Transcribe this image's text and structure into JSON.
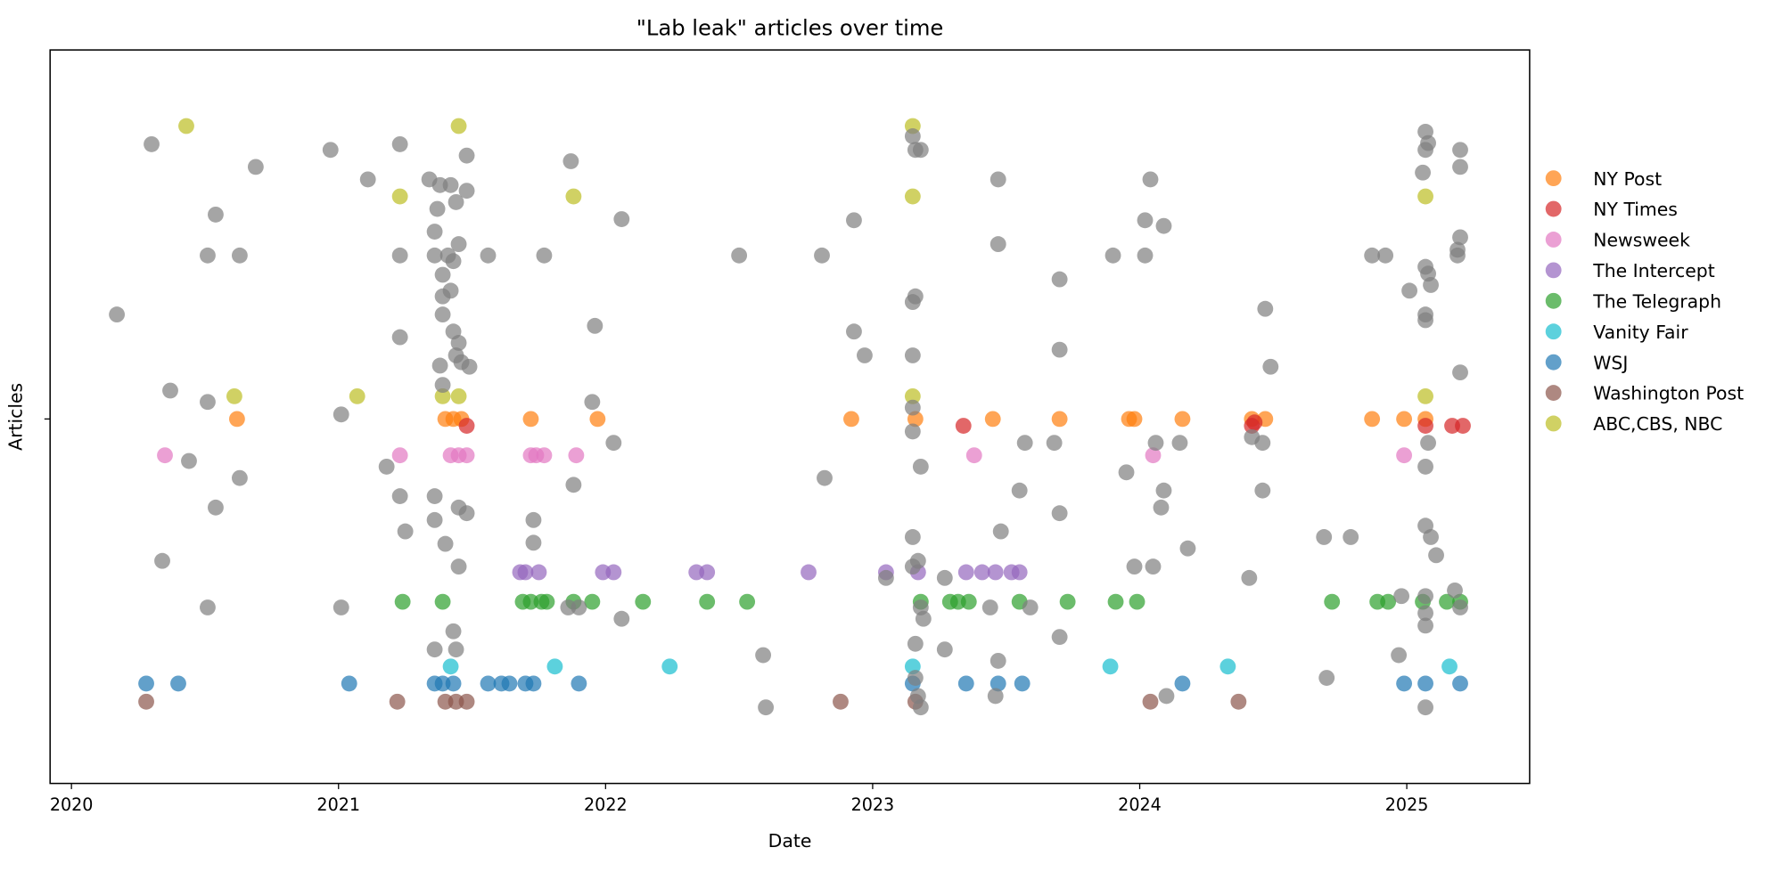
{
  "chart_data": {
    "type": "scatter",
    "title": "\"Lab leak\" articles over time",
    "x_label": "Date",
    "y_label": "Articles",
    "xlim": [
      2019.92,
      2025.46
    ],
    "xticks": [
      2020,
      2021,
      2022,
      2023,
      2024,
      2025
    ],
    "ylim": [
      0,
      646
    ],
    "yticks": [
      {
        "value": 321,
        "label": null
      }
    ],
    "grid": false,
    "legend": "outside right",
    "series": [
      {
        "name": "NY Post",
        "color": "#ff7f0e",
        "x": [
          2020.62,
          2021.4,
          2021.43,
          2021.46,
          2021.72,
          2021.97,
          2022.92,
          2023.16,
          2023.45,
          2023.7,
          2023.96,
          2023.98,
          2024.16,
          2024.42,
          2024.47,
          2024.87,
          2024.99,
          2025.07
        ],
        "values": [
          321,
          321,
          321,
          321,
          321,
          321,
          321,
          321,
          321,
          321,
          321,
          321,
          321,
          321,
          321,
          321,
          321,
          321
        ]
      },
      {
        "name": "NY Times",
        "color": "#d62728",
        "x": [
          2021.48,
          2023.34,
          2024.42,
          2024.43,
          2025.07,
          2025.17,
          2025.21
        ],
        "values": [
          315,
          315,
          315,
          318,
          315,
          315,
          315
        ]
      },
      {
        "name": "Newsweek",
        "color": "#e377c2",
        "x": [
          2020.35,
          2021.23,
          2021.42,
          2021.45,
          2021.48,
          2021.72,
          2021.74,
          2021.77,
          2021.89,
          2023.38,
          2024.05,
          2024.99
        ],
        "values": [
          289,
          289,
          289,
          289,
          289,
          289,
          289,
          289,
          289,
          289,
          289,
          289
        ]
      },
      {
        "name": "The Intercept",
        "color": "#9467bd",
        "x": [
          2021.68,
          2021.7,
          2021.75,
          2021.99,
          2022.03,
          2022.34,
          2022.38,
          2022.76,
          2023.05,
          2023.17,
          2023.35,
          2023.41,
          2023.46,
          2023.52,
          2023.55
        ],
        "values": [
          186,
          186,
          186,
          186,
          186,
          186,
          186,
          186,
          186,
          186,
          186,
          186,
          186,
          186,
          186
        ]
      },
      {
        "name": "The Telegraph",
        "color": "#2ca02c",
        "x": [
          2021.24,
          2021.39,
          2021.69,
          2021.72,
          2021.76,
          2021.78,
          2021.88,
          2021.95,
          2022.14,
          2022.38,
          2022.53,
          2023.18,
          2023.29,
          2023.32,
          2023.36,
          2023.55,
          2023.73,
          2023.91,
          2023.99,
          2024.72,
          2024.89,
          2024.93,
          2025.06,
          2025.15,
          2025.2
        ],
        "values": [
          160,
          160,
          160,
          160,
          160,
          160,
          160,
          160,
          160,
          160,
          160,
          160,
          160,
          160,
          160,
          160,
          160,
          160,
          160,
          160,
          160,
          160,
          160,
          160,
          160
        ]
      },
      {
        "name": "Vanity Fair",
        "color": "#17becf",
        "x": [
          2021.42,
          2021.81,
          2022.24,
          2023.15,
          2023.89,
          2024.33,
          2025.16
        ],
        "values": [
          103,
          103,
          103,
          103,
          103,
          103,
          103
        ]
      },
      {
        "name": "WSJ",
        "color": "#1f77b4",
        "x": [
          2020.28,
          2020.4,
          2021.04,
          2021.36,
          2021.39,
          2021.43,
          2021.56,
          2021.61,
          2021.64,
          2021.7,
          2021.73,
          2021.9,
          2023.15,
          2023.35,
          2023.47,
          2023.56,
          2024.16,
          2024.99,
          2025.07,
          2025.2
        ],
        "values": [
          88,
          88,
          88,
          88,
          88,
          88,
          88,
          88,
          88,
          88,
          88,
          88,
          88,
          88,
          88,
          88,
          88,
          88,
          88,
          88
        ]
      },
      {
        "name": "Washington Post",
        "color": "#8c564b",
        "x": [
          2020.28,
          2021.22,
          2021.4,
          2021.44,
          2021.48,
          2022.88,
          2023.16,
          2024.04,
          2024.37
        ],
        "values": [
          72,
          72,
          72,
          72,
          72,
          72,
          72,
          72,
          72
        ]
      },
      {
        "name": "ABC,CBS, NBC",
        "color": "#bcbd22",
        "x": [
          2020.43,
          2020.61,
          2021.07,
          2021.23,
          2021.39,
          2021.45,
          2021.45,
          2021.88,
          2023.15,
          2023.15,
          2023.15,
          2025.07,
          2025.07
        ],
        "values": [
          579,
          341,
          341,
          517,
          341,
          579,
          341,
          517,
          579,
          517,
          341,
          517,
          341
        ]
      },
      {
        "color": "#7f7f7f",
        "x": [
          2020.17,
          2020.3,
          2020.37,
          2020.34,
          2020.44,
          2020.51,
          2020.51,
          2020.54,
          2020.54,
          2020.51,
          2020.63,
          2020.63,
          2020.69,
          2020.97,
          2021.01,
          2021.01,
          2021.11,
          2021.18,
          2021.23,
          2021.23,
          2021.23,
          2021.23,
          2021.25,
          2021.34,
          2021.37,
          2021.36,
          2021.36,
          2021.36,
          2021.36,
          2021.36,
          2021.38,
          2021.39,
          2021.39,
          2021.39,
          2021.38,
          2021.39,
          2021.4,
          2021.42,
          2021.44,
          2021.41,
          2021.43,
          2021.42,
          2021.43,
          2021.45,
          2021.45,
          2021.44,
          2021.43,
          2021.44,
          2021.45,
          2021.45,
          2021.48,
          2021.48,
          2021.46,
          2021.48,
          2021.49,
          2021.56,
          2021.73,
          2021.73,
          2021.77,
          2021.87,
          2021.88,
          2021.86,
          2021.9,
          2021.96,
          2021.95,
          2022.03,
          2022.06,
          2022.06,
          2022.5,
          2022.59,
          2022.6,
          2022.81,
          2022.82,
          2022.93,
          2022.93,
          2022.97,
          2023.05,
          2023.15,
          2023.16,
          2023.18,
          2023.15,
          2023.16,
          2023.15,
          2023.15,
          2023.15,
          2023.18,
          2023.15,
          2023.17,
          2023.15,
          2023.18,
          2023.19,
          2023.16,
          2023.16,
          2023.17,
          2023.18,
          2023.27,
          2023.27,
          2023.44,
          2023.47,
          2023.47,
          2023.48,
          2023.47,
          2023.46,
          2023.55,
          2023.57,
          2023.59,
          2023.68,
          2023.7,
          2023.7,
          2023.7,
          2023.7,
          2023.9,
          2023.95,
          2023.98,
          2024.02,
          2024.02,
          2024.04,
          2024.06,
          2024.05,
          2024.08,
          2024.09,
          2024.09,
          2024.1,
          2024.15,
          2024.18,
          2024.41,
          2024.42,
          2024.46,
          2024.46,
          2024.47,
          2024.49,
          2024.69,
          2024.7,
          2024.79,
          2024.87,
          2024.92,
          2024.97,
          2025.01,
          2025.07,
          2025.08,
          2025.07,
          2025.06,
          2025.07,
          2025.08,
          2025.09,
          2025.07,
          2025.07,
          2025.08,
          2025.07,
          2025.07,
          2025.09,
          2025.11,
          2025.07,
          2025.07,
          2025.07,
          2025.07,
          2025.18,
          2025.2,
          2025.2,
          2025.2,
          2025.19,
          2025.19,
          2025.2,
          2025.2,
          2024.98
        ],
        "values": [
          413,
          563,
          346,
          196,
          284,
          336,
          465,
          501,
          243,
          155,
          465,
          269,
          543,
          558,
          325,
          155,
          532,
          279,
          563,
          465,
          393,
          253,
          222,
          532,
          506,
          486,
          465,
          253,
          232,
          118,
          527,
          448,
          429,
          413,
          368,
          351,
          211,
          527,
          512,
          465,
          460,
          434,
          398,
          388,
          475,
          377,
          134,
          118,
          243,
          191,
          553,
          522,
          371,
          238,
          367,
          465,
          232,
          212,
          465,
          548,
          263,
          155,
          155,
          403,
          336,
          300,
          497,
          145,
          465,
          113,
          67,
          465,
          269,
          496,
          398,
          377,
          181,
          570,
          558,
          558,
          424,
          429,
          377,
          331,
          310,
          279,
          217,
          196,
          191,
          155,
          145,
          123,
          93,
          77,
          67,
          181,
          118,
          155,
          532,
          475,
          222,
          108,
          77,
          258,
          300,
          155,
          300,
          444,
          382,
          238,
          129,
          465,
          274,
          191,
          496,
          465,
          532,
          300,
          191,
          243,
          491,
          258,
          77,
          300,
          207,
          181,
          305,
          300,
          258,
          418,
          367,
          217,
          93,
          217,
          465,
          465,
          113,
          434,
          574,
          564,
          558,
          538,
          455,
          449,
          439,
          413,
          408,
          300,
          279,
          227,
          217,
          201,
          165,
          150,
          139,
          67,
          170,
          558,
          543,
          481,
          470,
          465,
          362,
          155,
          165
        ]
      }
    ]
  }
}
